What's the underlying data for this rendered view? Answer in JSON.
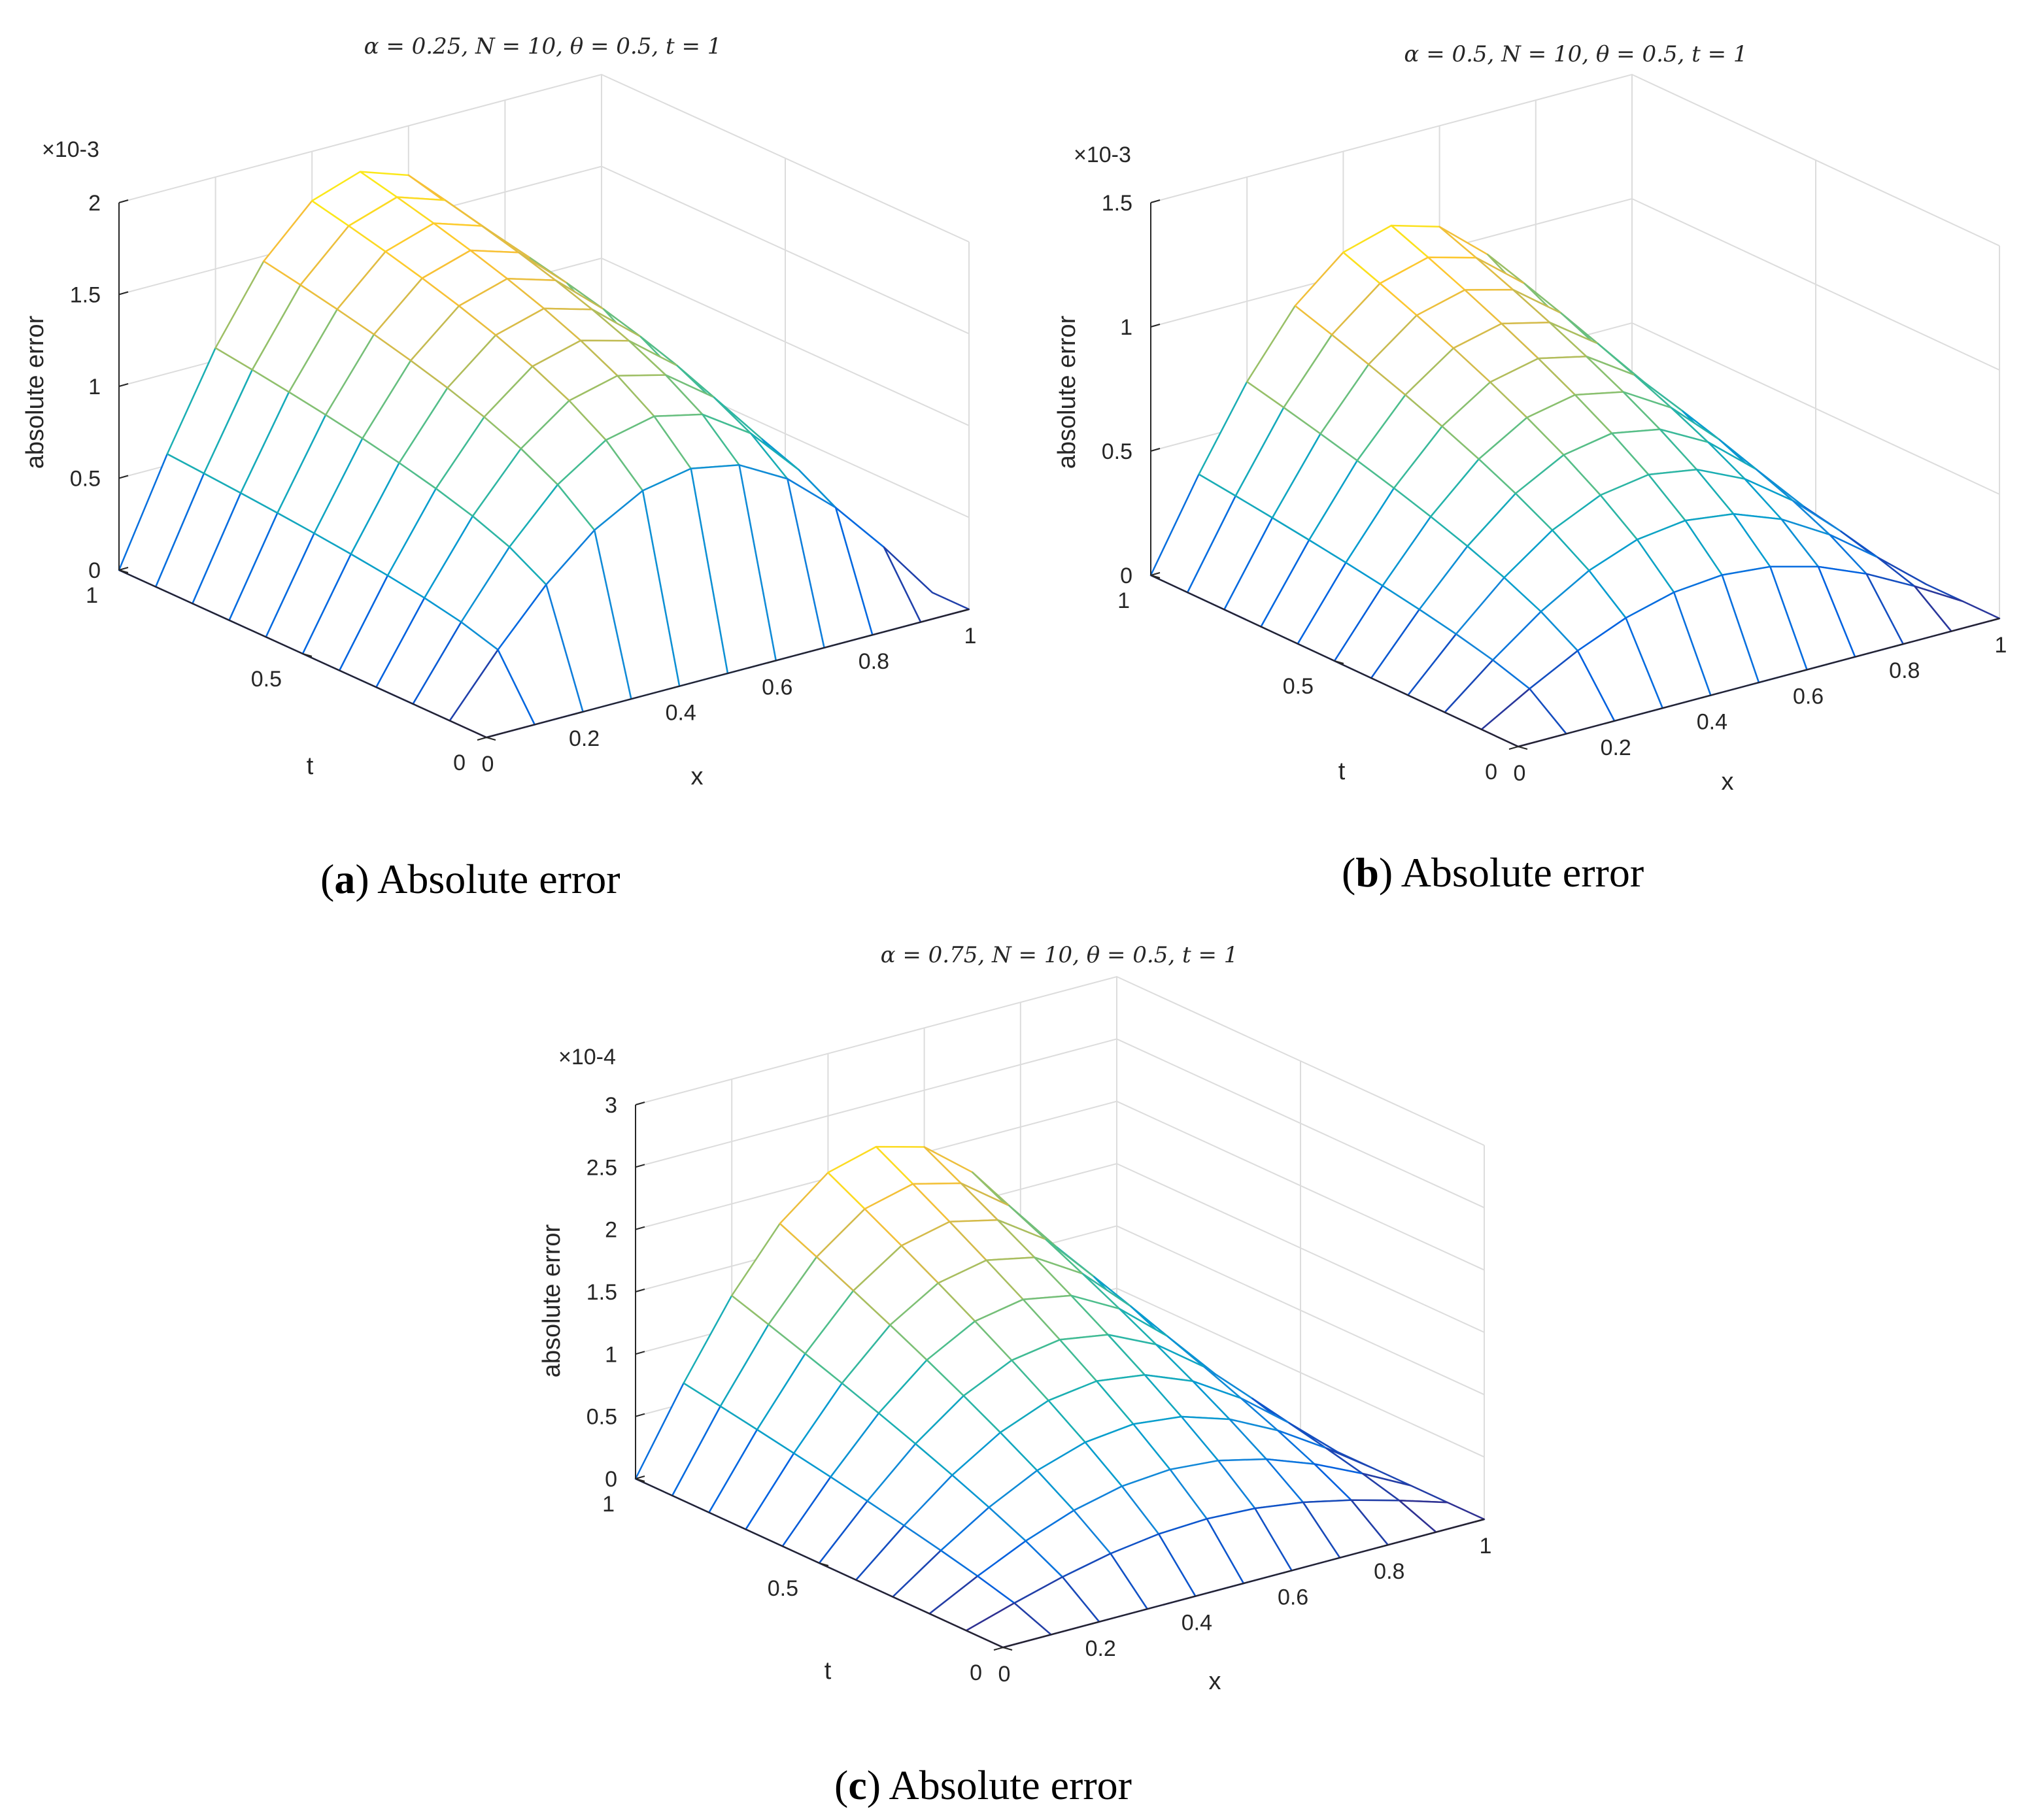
{
  "figure": {
    "panels": [
      {
        "id": "a",
        "caption_letter": "a",
        "caption_text": " Absolute error"
      },
      {
        "id": "b",
        "caption_letter": "b",
        "caption_text": " Absolute error"
      },
      {
        "id": "c",
        "caption_letter": "c",
        "caption_text": " Absolute error"
      }
    ]
  },
  "chart_data": [
    {
      "type": "surface",
      "title": "α = 0.25, N = 10, θ = 0.5, t = 1",
      "xlabel": "x",
      "ylabel": "t",
      "zlabel": "absolute error",
      "xlim": [
        0,
        1
      ],
      "ylim": [
        0,
        1
      ],
      "zlim": [
        0,
        2
      ],
      "x_ticks": [
        "0",
        "0.2",
        "0.4",
        "0.6",
        "0.8",
        "1"
      ],
      "y_ticks": [
        "0",
        "0.5",
        "1"
      ],
      "z_ticks": [
        "0",
        "0.5",
        "1",
        "1.5",
        "2"
      ],
      "z_multiplier": "×10-3",
      "grid": true,
      "surface": {
        "x_points": 11,
        "t_points": 11,
        "peak_value": 1.82,
        "peak_location": "x=0.5, t=1",
        "boundary_value": 0,
        "model": "peak * sin(pi*x) * t^alpha"
      }
    },
    {
      "type": "surface",
      "title": "α = 0.5, N = 10, θ = 0.5, t = 1",
      "xlabel": "x",
      "ylabel": "t",
      "zlabel": "absolute error",
      "xlim": [
        0,
        1
      ],
      "ylim": [
        0,
        1
      ],
      "zlim": [
        0,
        1.5
      ],
      "x_ticks": [
        "0",
        "0.2",
        "0.4",
        "0.6",
        "0.8",
        "1"
      ],
      "y_ticks": [
        "0",
        "0.5",
        "1"
      ],
      "z_ticks": [
        "0",
        "0.5",
        "1",
        "1.5"
      ],
      "z_multiplier": "×10-3",
      "grid": true,
      "surface": {
        "x_points": 11,
        "t_points": 11,
        "peak_value": 1.15,
        "peak_location": "x=0.5, t=1",
        "boundary_value": 0,
        "model": "peak * sin(pi*x) * t^alpha"
      }
    },
    {
      "type": "surface",
      "title": "α = 0.75, N = 10, θ = 0.5, t = 1",
      "xlabel": "x",
      "ylabel": "t",
      "zlabel": "absolute error",
      "xlim": [
        0,
        1
      ],
      "ylim": [
        0,
        1
      ],
      "zlim": [
        0,
        3
      ],
      "x_ticks": [
        "0",
        "0.2",
        "0.4",
        "0.6",
        "0.8",
        "1"
      ],
      "y_ticks": [
        "0",
        "0.5",
        "1"
      ],
      "z_ticks": [
        "0",
        "0.5",
        "1",
        "1.5",
        "2",
        "2.5",
        "3"
      ],
      "z_multiplier": "×10-4",
      "grid": true,
      "surface": {
        "x_points": 11,
        "t_points": 11,
        "peak_value": 2.15,
        "peak_location": "x=0.5, t=1",
        "boundary_value": 0,
        "model": "peak * sin(pi*x) * t^alpha"
      }
    }
  ]
}
